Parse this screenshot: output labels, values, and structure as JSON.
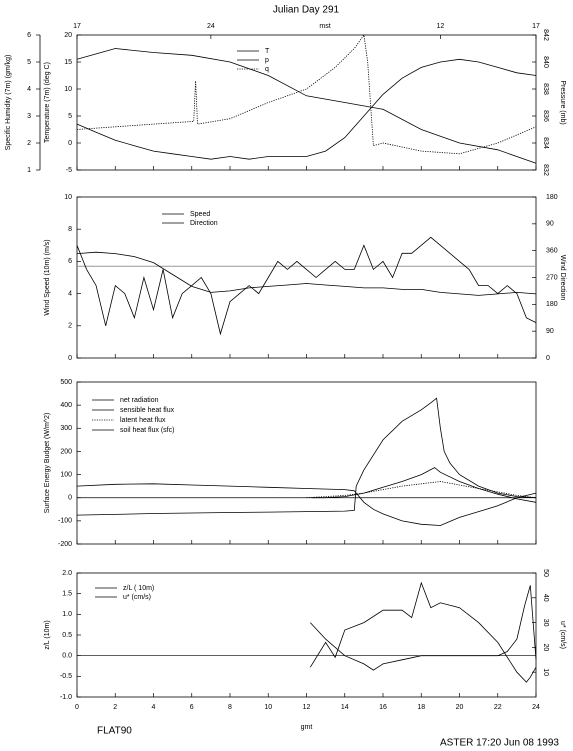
{
  "title": "Julian Day 291",
  "footer_left": "FLAT90",
  "footer_right": "ASTER 17:20 Jun 08 1993",
  "chart_data": [
    {
      "type": "line",
      "x2label": "mst",
      "x2lim": [
        17,
        41
      ],
      "x2ticks": [
        17,
        24,
        {
          "value": 36,
          "label": "12"
        },
        {
          "value": 41,
          "label": "17"
        }
      ],
      "xlim": [
        0,
        24
      ],
      "ylabel": "Temperature (7m) (deg C)",
      "ylim": [
        -5,
        20
      ],
      "yticks": [
        -5,
        0,
        5,
        10,
        15,
        20
      ],
      "y2label": "Pressure (mb)",
      "y2lim": [
        832,
        842
      ],
      "y2ticks": [
        832,
        834,
        836,
        838,
        840,
        842
      ],
      "y3label": "Specific Humidity (7m) (gm/kg)",
      "y3lim": [
        1,
        6
      ],
      "y3ticks": [
        1,
        2,
        3,
        4,
        5,
        6
      ],
      "series": [
        {
          "name": "T",
          "color": "#000000",
          "x": [
            0,
            1,
            2,
            3,
            4,
            5,
            6,
            7,
            8,
            9,
            10,
            11,
            12,
            13,
            14,
            15,
            16,
            17,
            18,
            19,
            20,
            21,
            22,
            23,
            24
          ],
          "values": [
            3.5,
            2,
            0.5,
            -0.5,
            -1.5,
            -2,
            -2.5,
            -3,
            -2.5,
            -3,
            -2.5,
            -2.5,
            -2.5,
            -1.5,
            1,
            5,
            9,
            12,
            14,
            15,
            15.5,
            15,
            14,
            13,
            12.5
          ]
        },
        {
          "name": "p",
          "color": "#000000",
          "axis": "y2",
          "x": [
            0,
            2,
            4,
            6,
            8,
            10,
            12,
            14,
            16,
            18,
            20,
            22,
            24
          ],
          "values": [
            840.2,
            841,
            840.7,
            840.5,
            840,
            839,
            837.5,
            837,
            836.5,
            835,
            834,
            833.5,
            832.5
          ]
        },
        {
          "name": "q",
          "color": "#000000",
          "axis": "y3",
          "dash": true,
          "x": [
            0,
            2,
            4,
            6.1,
            6.2,
            6.3,
            8,
            10,
            12,
            13.5,
            14.5,
            15,
            15.2,
            15.5,
            16,
            18,
            20,
            22,
            24
          ],
          "values": [
            2.5,
            2.6,
            2.7,
            2.8,
            4.3,
            2.7,
            2.9,
            3.5,
            4.0,
            4.8,
            5.5,
            6.0,
            5.0,
            1.9,
            2.0,
            1.7,
            1.6,
            2.0,
            2.6
          ]
        }
      ]
    },
    {
      "type": "line",
      "xlim": [
        0,
        24
      ],
      "ylabel": "Wind Speed (10m) (m/s)",
      "ylim": [
        0,
        10
      ],
      "yticks": [
        0,
        2,
        4,
        6,
        8,
        10
      ],
      "y2label": "Wind Direction",
      "y2lim": [
        0,
        540
      ],
      "y2ticks": [
        0,
        90,
        180,
        270,
        360,
        {
          "value": 450,
          "label": "90"
        },
        {
          "value": 540,
          "label": "180"
        }
      ],
      "hline": 5.7,
      "series": [
        {
          "name": "Speed",
          "color": "#000000",
          "x": [
            0,
            0.5,
            1,
            1.5,
            2,
            2.5,
            3,
            3.5,
            4,
            4.5,
            5,
            5.5,
            6,
            6.5,
            7,
            7.5,
            8,
            8.5,
            9,
            9.5,
            10,
            10.5,
            11,
            11.5,
            12,
            12.5,
            13,
            13.5,
            14,
            14.5,
            15,
            15.5,
            16,
            16.5,
            17,
            17.5,
            18,
            18.5,
            19,
            19.5,
            20,
            20.5,
            21,
            21.5,
            22,
            22.5,
            23,
            23.5,
            24
          ],
          "values": [
            7,
            5.5,
            4.5,
            2,
            4.5,
            4,
            2.5,
            5,
            3,
            5.5,
            2.5,
            4,
            4.5,
            5,
            4,
            1.5,
            3.5,
            4,
            4.5,
            4,
            5,
            6,
            5.5,
            6,
            5.5,
            5,
            5.5,
            6,
            5.5,
            5.5,
            7,
            5.5,
            6,
            5,
            6.5,
            6.5,
            7,
            7.5,
            7,
            6.5,
            6,
            5.5,
            4.5,
            4.5,
            4,
            4.5,
            4,
            2.5,
            2.2
          ]
        },
        {
          "name": "Direction",
          "color": "#000000",
          "axis": "y2",
          "x": [
            0,
            1,
            2,
            3,
            4,
            5,
            6,
            7,
            8,
            9,
            10,
            11,
            12,
            13,
            14,
            15,
            16,
            17,
            18,
            19,
            20,
            21,
            22,
            23,
            24
          ],
          "values": [
            350,
            355,
            350,
            340,
            320,
            280,
            240,
            220,
            225,
            235,
            240,
            245,
            250,
            245,
            240,
            235,
            235,
            230,
            230,
            220,
            215,
            210,
            215,
            220,
            215
          ]
        }
      ]
    },
    {
      "type": "line",
      "xlim": [
        0,
        24
      ],
      "ylabel": "Surface Energy Budget (W/m^2)",
      "ylim": [
        -200,
        500
      ],
      "yticks": [
        -200,
        -100,
        0,
        100,
        200,
        300,
        400,
        500
      ],
      "series": [
        {
          "name": "net radiation",
          "color": "#000000",
          "x": [
            0,
            2,
            4,
            6,
            8,
            10,
            12,
            14,
            14.5,
            14.6,
            15,
            16,
            17,
            18,
            18.5,
            18.8,
            19,
            19.2,
            19.5,
            20,
            21,
            22,
            23,
            24
          ],
          "values": [
            -75,
            -72,
            -68,
            -66,
            -64,
            -62,
            -60,
            -58,
            -55,
            50,
            120,
            250,
            330,
            380,
            410,
            430,
            300,
            200,
            150,
            100,
            50,
            20,
            5,
            0
          ]
        },
        {
          "name": "sensible heat flux",
          "color": "#000000",
          "x": [
            12.3,
            13,
            14,
            15,
            16,
            17,
            18,
            18.7,
            19,
            20,
            21,
            22,
            23,
            24
          ],
          "values": [
            0,
            0,
            5,
            20,
            45,
            70,
            100,
            130,
            110,
            70,
            40,
            15,
            -5,
            -20
          ]
        },
        {
          "name": "latent heat flux",
          "color": "#000000",
          "dash": true,
          "x": [
            12,
            13,
            14,
            15,
            16,
            17,
            18,
            19,
            20,
            21,
            22,
            23,
            24
          ],
          "values": [
            0,
            5,
            10,
            20,
            35,
            50,
            60,
            70,
            55,
            40,
            25,
            10,
            0
          ]
        },
        {
          "name": "soil heat flux (sfc)",
          "color": "#000000",
          "x": [
            0,
            2,
            4,
            6,
            8,
            10,
            12,
            14,
            14.5,
            15,
            15.5,
            16,
            17,
            18,
            19,
            20,
            21,
            22,
            23,
            24
          ],
          "values": [
            50,
            58,
            60,
            55,
            50,
            45,
            40,
            35,
            30,
            -20,
            -50,
            -70,
            -100,
            -115,
            -120,
            -85,
            -60,
            -35,
            0,
            20
          ]
        }
      ]
    },
    {
      "type": "line",
      "xlabel": "gmt",
      "xlim": [
        0,
        24
      ],
      "xticks": [
        0,
        2,
        4,
        6,
        8,
        10,
        12,
        14,
        16,
        18,
        20,
        22,
        24
      ],
      "ylabel": "z/L (10m)",
      "ylim": [
        -1,
        2
      ],
      "yticks": [
        {
          "value": -1,
          "label": "-1.0"
        },
        {
          "value": -0.5,
          "label": "-0.5"
        },
        {
          "value": 0,
          "label": "0.0"
        },
        {
          "value": 0.5,
          "label": "0.5"
        },
        {
          "value": 1,
          "label": "1.0"
        },
        {
          "value": 1.5,
          "label": "1.5"
        },
        {
          "value": 2,
          "label": "2.0"
        }
      ],
      "y2label": "u* (cm/s)",
      "y2lim": [
        0,
        50
      ],
      "y2ticks": [
        10,
        20,
        30,
        40,
        50
      ],
      "series": [
        {
          "name": "z/L ( 10m)",
          "color": "#000000",
          "x": [
            12.2,
            13,
            14,
            15,
            15.5,
            16,
            17,
            18,
            19,
            20,
            21,
            22,
            22.5,
            23,
            23.4,
            23.7,
            24
          ],
          "values": [
            0.8,
            0.4,
            0.0,
            -0.2,
            -0.35,
            -0.2,
            -0.1,
            0.0,
            0.0,
            0.0,
            0.0,
            0.0,
            0.1,
            0.4,
            1.2,
            1.7,
            -0.1
          ]
        },
        {
          "name": "u* (cm/s)",
          "color": "#000000",
          "axis": "y2",
          "x": [
            12.2,
            13,
            13.5,
            14,
            15,
            16,
            17,
            17.5,
            18,
            18.5,
            19,
            20,
            21,
            22,
            23,
            23.5,
            23.7,
            24
          ],
          "values": [
            12,
            22,
            16,
            27,
            30,
            35,
            35,
            32,
            46,
            36,
            38,
            36,
            30,
            22,
            10,
            6,
            8,
            12
          ]
        }
      ]
    }
  ]
}
